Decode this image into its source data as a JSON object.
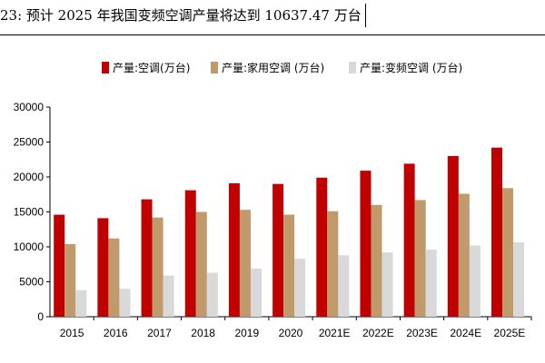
{
  "title": "23: 预计 2025 年我国变频空调产量将达到 10637.47 万台",
  "colors": {
    "series1": "#c00000",
    "series2": "#c19a6b",
    "series3": "#d9d9d9",
    "axis": "#000000"
  },
  "chart_data": {
    "type": "bar",
    "categories": [
      "2015",
      "2016",
      "2017",
      "2018",
      "2019",
      "2020",
      "2021E",
      "2022E",
      "2023E",
      "2024E",
      "2025E"
    ],
    "series": [
      {
        "name": "产量:空调(万台)",
        "values": [
          14600,
          14100,
          16800,
          18100,
          19100,
          19000,
          19900,
          20900,
          21900,
          23000,
          24200
        ]
      },
      {
        "name": "产量:家用空调 (万台)",
        "values": [
          10400,
          11200,
          14200,
          15000,
          15300,
          14600,
          15100,
          16000,
          16700,
          17600,
          18400
        ]
      },
      {
        "name": "产量:变频空调 (万台)",
        "values": [
          3800,
          4000,
          5900,
          6300,
          6900,
          8300,
          8800,
          9200,
          9600,
          10200,
          10637.47
        ]
      }
    ],
    "yticks": [
      "0",
      "5000",
      "10000",
      "15000",
      "20000",
      "25000",
      "30000"
    ],
    "ylim": [
      0,
      30000
    ],
    "legend": "top",
    "grid": false
  }
}
